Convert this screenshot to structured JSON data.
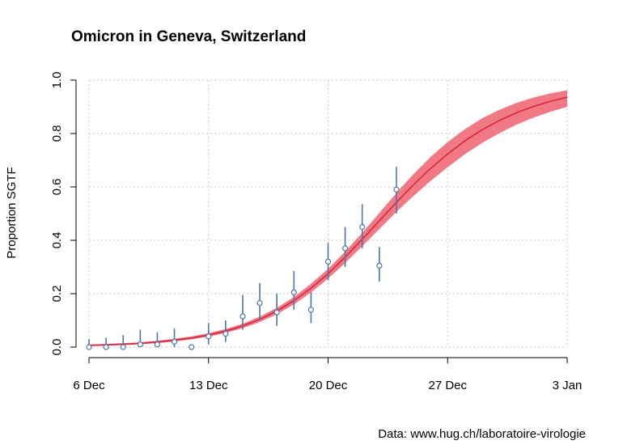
{
  "chart_data": {
    "type": "line",
    "title": "Omicron in Geneva, Switzerland",
    "xlabel": "",
    "ylabel": "Proportion SGTF",
    "source_note": "Data: www.hug.ch/laboratoire-virologie",
    "x_unit": "day",
    "x_start": "6 Dec",
    "xlim": [
      0,
      28
    ],
    "ylim": [
      0,
      1
    ],
    "x_ticks": [
      {
        "x": 0,
        "label": "6 Dec"
      },
      {
        "x": 7,
        "label": "13 Dec"
      },
      {
        "x": 14,
        "label": "20 Dec"
      },
      {
        "x": 21,
        "label": "27 Dec"
      },
      {
        "x": 28,
        "label": "3 Jan"
      }
    ],
    "y_ticks": [
      {
        "y": 0.0,
        "label": "0.0"
      },
      {
        "y": 0.2,
        "label": "0.2"
      },
      {
        "y": 0.4,
        "label": "0.4"
      },
      {
        "y": 0.6,
        "label": "0.6"
      },
      {
        "y": 0.8,
        "label": "0.8"
      },
      {
        "y": 1.0,
        "label": "1.0"
      }
    ],
    "grid": true,
    "colors": {
      "fit_line": "#d7263d",
      "fit_band": "#ee6a78",
      "points": "#4a78a8",
      "grid": "#c8c8c8"
    },
    "fit": {
      "x": [
        0,
        1,
        2,
        3,
        4,
        5,
        6,
        7,
        8,
        9,
        10,
        11,
        12,
        13,
        14,
        15,
        16,
        17,
        18,
        19,
        20,
        21,
        22,
        23,
        24,
        25,
        26,
        27,
        28
      ],
      "y": [
        0.006,
        0.008,
        0.011,
        0.014,
        0.019,
        0.026,
        0.034,
        0.045,
        0.06,
        0.079,
        0.104,
        0.135,
        0.174,
        0.221,
        0.275,
        0.337,
        0.404,
        0.473,
        0.542,
        0.608,
        0.669,
        0.723,
        0.772,
        0.813,
        0.848,
        0.877,
        0.901,
        0.92,
        0.936
      ],
      "lower": [
        0.004,
        0.006,
        0.008,
        0.011,
        0.015,
        0.021,
        0.029,
        0.039,
        0.053,
        0.071,
        0.094,
        0.123,
        0.16,
        0.205,
        0.257,
        0.315,
        0.378,
        0.442,
        0.506,
        0.566,
        0.622,
        0.674,
        0.722,
        0.764,
        0.8,
        0.832,
        0.859,
        0.881,
        0.9
      ],
      "upper": [
        0.01,
        0.012,
        0.015,
        0.018,
        0.024,
        0.031,
        0.04,
        0.052,
        0.068,
        0.088,
        0.114,
        0.147,
        0.188,
        0.237,
        0.293,
        0.358,
        0.428,
        0.502,
        0.577,
        0.648,
        0.712,
        0.768,
        0.816,
        0.856,
        0.888,
        0.914,
        0.934,
        0.95,
        0.962
      ]
    },
    "points": [
      {
        "x": 0,
        "y": 0.0,
        "lower": 0.0,
        "upper": 0.03
      },
      {
        "x": 1,
        "y": 0.0,
        "lower": 0.0,
        "upper": 0.035
      },
      {
        "x": 2,
        "y": 0.0,
        "lower": 0.0,
        "upper": 0.045
      },
      {
        "x": 3,
        "y": 0.01,
        "lower": 0.0,
        "upper": 0.065
      },
      {
        "x": 4,
        "y": 0.01,
        "lower": 0.0,
        "upper": 0.055
      },
      {
        "x": 5,
        "y": 0.02,
        "lower": 0.0,
        "upper": 0.07
      },
      {
        "x": 6,
        "y": 0.0,
        "lower": 0.0,
        "upper": 0.0
      },
      {
        "x": 7,
        "y": 0.04,
        "lower": 0.01,
        "upper": 0.09
      },
      {
        "x": 8,
        "y": 0.05,
        "lower": 0.02,
        "upper": 0.1
      },
      {
        "x": 9,
        "y": 0.115,
        "lower": 0.065,
        "upper": 0.195
      },
      {
        "x": 10,
        "y": 0.165,
        "lower": 0.1,
        "upper": 0.24
      },
      {
        "x": 11,
        "y": 0.13,
        "lower": 0.08,
        "upper": 0.2
      },
      {
        "x": 12,
        "y": 0.205,
        "lower": 0.14,
        "upper": 0.285
      },
      {
        "x": 13,
        "y": 0.14,
        "lower": 0.09,
        "upper": 0.205
      },
      {
        "x": 14,
        "y": 0.32,
        "lower": 0.25,
        "upper": 0.39
      },
      {
        "x": 15,
        "y": 0.37,
        "lower": 0.3,
        "upper": 0.45
      },
      {
        "x": 16,
        "y": 0.45,
        "lower": 0.37,
        "upper": 0.535
      },
      {
        "x": 17,
        "y": 0.305,
        "lower": 0.245,
        "upper": 0.375
      },
      {
        "x": 18,
        "y": 0.59,
        "lower": 0.5,
        "upper": 0.675
      }
    ]
  }
}
